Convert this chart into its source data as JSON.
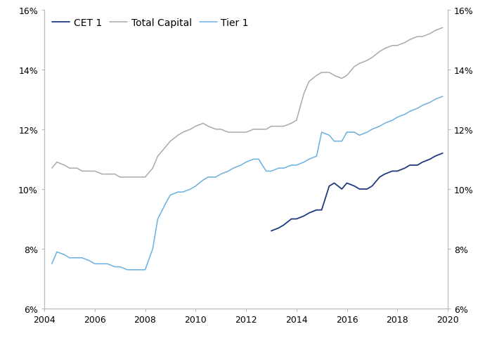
{
  "xlim": [
    2004,
    2020
  ],
  "ylim": [
    0.06,
    0.16
  ],
  "yticks": [
    0.06,
    0.08,
    0.1,
    0.12,
    0.14,
    0.16
  ],
  "xticks": [
    2004,
    2006,
    2008,
    2010,
    2012,
    2014,
    2016,
    2018,
    2020
  ],
  "cet1_color": "#1f3a7d",
  "total_capital_color": "#aaaaaa",
  "tier1_color": "#6ab0e0",
  "legend_labels": [
    "CET 1",
    "Total Capital",
    "Tier 1"
  ],
  "total_capital": {
    "x": [
      2004.3,
      2004.5,
      2004.8,
      2005.0,
      2005.3,
      2005.5,
      2005.8,
      2006.0,
      2006.3,
      2006.5,
      2006.8,
      2007.0,
      2007.3,
      2007.5,
      2007.8,
      2008.0,
      2008.3,
      2008.5,
      2008.8,
      2009.0,
      2009.3,
      2009.5,
      2009.8,
      2010.0,
      2010.3,
      2010.5,
      2010.8,
      2011.0,
      2011.3,
      2011.5,
      2011.8,
      2012.0,
      2012.3,
      2012.5,
      2012.8,
      2013.0,
      2013.3,
      2013.5,
      2013.8,
      2014.0,
      2014.3,
      2014.5,
      2014.8,
      2015.0,
      2015.3,
      2015.5,
      2015.8,
      2016.0,
      2016.3,
      2016.5,
      2016.8,
      2017.0,
      2017.3,
      2017.5,
      2017.8,
      2018.0,
      2018.3,
      2018.5,
      2018.8,
      2019.0,
      2019.3,
      2019.5,
      2019.8
    ],
    "y": [
      0.107,
      0.109,
      0.108,
      0.107,
      0.107,
      0.106,
      0.106,
      0.106,
      0.105,
      0.105,
      0.105,
      0.104,
      0.104,
      0.104,
      0.104,
      0.104,
      0.107,
      0.111,
      0.114,
      0.116,
      0.118,
      0.119,
      0.12,
      0.121,
      0.122,
      0.121,
      0.12,
      0.12,
      0.119,
      0.119,
      0.119,
      0.119,
      0.12,
      0.12,
      0.12,
      0.121,
      0.121,
      0.121,
      0.122,
      0.123,
      0.132,
      0.136,
      0.138,
      0.139,
      0.139,
      0.138,
      0.137,
      0.138,
      0.141,
      0.142,
      0.143,
      0.144,
      0.146,
      0.147,
      0.148,
      0.148,
      0.149,
      0.15,
      0.151,
      0.151,
      0.152,
      0.153,
      0.154
    ]
  },
  "tier1": {
    "x": [
      2004.3,
      2004.5,
      2004.8,
      2005.0,
      2005.3,
      2005.5,
      2005.8,
      2006.0,
      2006.3,
      2006.5,
      2006.8,
      2007.0,
      2007.3,
      2007.5,
      2007.8,
      2008.0,
      2008.3,
      2008.5,
      2008.8,
      2009.0,
      2009.3,
      2009.5,
      2009.8,
      2010.0,
      2010.3,
      2010.5,
      2010.8,
      2011.0,
      2011.3,
      2011.5,
      2011.8,
      2012.0,
      2012.3,
      2012.5,
      2012.8,
      2013.0,
      2013.3,
      2013.5,
      2013.8,
      2014.0,
      2014.3,
      2014.5,
      2014.8,
      2015.0,
      2015.3,
      2015.5,
      2015.8,
      2016.0,
      2016.3,
      2016.5,
      2016.8,
      2017.0,
      2017.3,
      2017.5,
      2017.8,
      2018.0,
      2018.3,
      2018.5,
      2018.8,
      2019.0,
      2019.3,
      2019.5,
      2019.8
    ],
    "y": [
      0.075,
      0.079,
      0.078,
      0.077,
      0.077,
      0.077,
      0.076,
      0.075,
      0.075,
      0.075,
      0.074,
      0.074,
      0.073,
      0.073,
      0.073,
      0.073,
      0.08,
      0.09,
      0.095,
      0.098,
      0.099,
      0.099,
      0.1,
      0.101,
      0.103,
      0.104,
      0.104,
      0.105,
      0.106,
      0.107,
      0.108,
      0.109,
      0.11,
      0.11,
      0.106,
      0.106,
      0.107,
      0.107,
      0.108,
      0.108,
      0.109,
      0.11,
      0.111,
      0.119,
      0.118,
      0.116,
      0.116,
      0.119,
      0.119,
      0.118,
      0.119,
      0.12,
      0.121,
      0.122,
      0.123,
      0.124,
      0.125,
      0.126,
      0.127,
      0.128,
      0.129,
      0.13,
      0.131
    ]
  },
  "cet1": {
    "x": [
      2013.0,
      2013.3,
      2013.5,
      2013.8,
      2014.0,
      2014.3,
      2014.5,
      2014.8,
      2015.0,
      2015.3,
      2015.5,
      2015.8,
      2016.0,
      2016.3,
      2016.5,
      2016.8,
      2017.0,
      2017.3,
      2017.5,
      2017.8,
      2018.0,
      2018.3,
      2018.5,
      2018.8,
      2019.0,
      2019.3,
      2019.5,
      2019.8
    ],
    "y": [
      0.086,
      0.087,
      0.088,
      0.09,
      0.09,
      0.091,
      0.092,
      0.093,
      0.093,
      0.101,
      0.102,
      0.1,
      0.102,
      0.101,
      0.1,
      0.1,
      0.101,
      0.104,
      0.105,
      0.106,
      0.106,
      0.107,
      0.108,
      0.108,
      0.109,
      0.11,
      0.111,
      0.112
    ]
  },
  "spine_color": "#bbbbbb",
  "tick_label_fontsize": 9,
  "legend_fontsize": 10
}
